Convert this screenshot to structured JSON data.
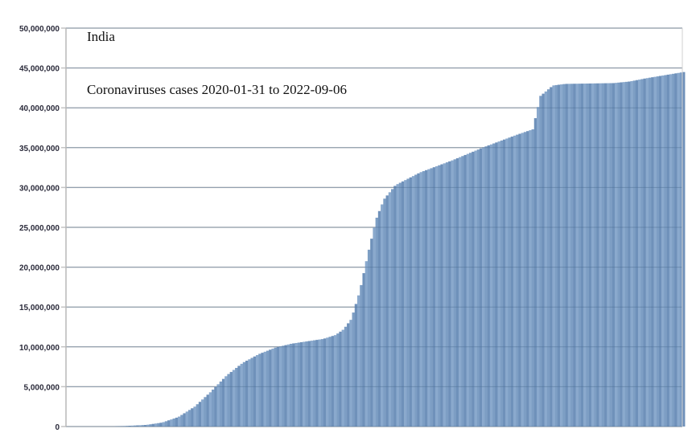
{
  "chart_data": {
    "type": "bar",
    "title": "India",
    "subtitle": "Coronaviruses cases 2020-01-31 to 2022-09-06",
    "xlabel": "",
    "ylabel": "",
    "x_range": [
      "2020-01-31",
      "2022-09-06"
    ],
    "ylim": [
      0,
      50000000
    ],
    "yticks": [
      "0",
      "5,000,000",
      "10,000,000",
      "15,000,000",
      "20,000,000",
      "25,000,000",
      "30,000,000",
      "35,000,000",
      "40,000,000",
      "45,000,000",
      "50,000,000"
    ],
    "grid": true,
    "legend": "none",
    "bar_color": "#82a2c8",
    "points": [
      {
        "date": "2020-01-31",
        "value": 0
      },
      {
        "date": "2020-03-30",
        "value": 1000
      },
      {
        "date": "2020-04-24",
        "value": 50000
      },
      {
        "date": "2020-05-31",
        "value": 200000
      },
      {
        "date": "2020-06-25",
        "value": 500000
      },
      {
        "date": "2020-07-20",
        "value": 1200000
      },
      {
        "date": "2020-08-14",
        "value": 2500000
      },
      {
        "date": "2020-09-07",
        "value": 4300000
      },
      {
        "date": "2020-10-02",
        "value": 6400000
      },
      {
        "date": "2020-10-27",
        "value": 8000000
      },
      {
        "date": "2020-11-21",
        "value": 9100000
      },
      {
        "date": "2020-12-16",
        "value": 9900000
      },
      {
        "date": "2021-01-10",
        "value": 10400000
      },
      {
        "date": "2021-02-28",
        "value": 11000000
      },
      {
        "date": "2021-03-19",
        "value": 11500000
      },
      {
        "date": "2021-03-31",
        "value": 12200000
      },
      {
        "date": "2021-04-12",
        "value": 13500000
      },
      {
        "date": "2021-04-25",
        "value": 17000000
      },
      {
        "date": "2021-05-07",
        "value": 21500000
      },
      {
        "date": "2021-05-20",
        "value": 26000000
      },
      {
        "date": "2021-06-01",
        "value": 28500000
      },
      {
        "date": "2021-06-19",
        "value": 30300000
      },
      {
        "date": "2021-07-27",
        "value": 31900000
      },
      {
        "date": "2021-09-14",
        "value": 33400000
      },
      {
        "date": "2021-11-03",
        "value": 35100000
      },
      {
        "date": "2021-12-22",
        "value": 36600000
      },
      {
        "date": "2022-01-16",
        "value": 37300000
      },
      {
        "date": "2022-01-28",
        "value": 41500000
      },
      {
        "date": "2022-02-16",
        "value": 42800000
      },
      {
        "date": "2022-03-07",
        "value": 43000000
      },
      {
        "date": "2022-05-20",
        "value": 43100000
      },
      {
        "date": "2022-06-14",
        "value": 43300000
      },
      {
        "date": "2022-07-09",
        "value": 43700000
      },
      {
        "date": "2022-09-06",
        "value": 44500000
      }
    ]
  }
}
